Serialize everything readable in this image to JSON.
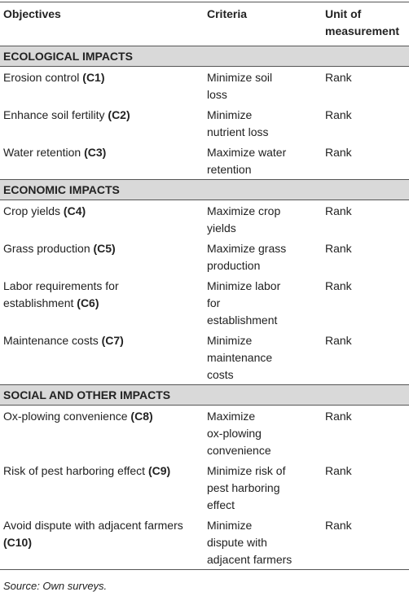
{
  "table": {
    "header": [
      "Objectives",
      "Criteria",
      "Unit of measurement"
    ],
    "sections": [
      {
        "title": "ECOLOGICAL IMPACTS",
        "rows": [
          {
            "objective": "Erosion control",
            "code": "(C1)",
            "criteria": [
              "Minimize soil",
              "loss"
            ],
            "unit": "Rank"
          },
          {
            "objective": "Enhance soil fertility",
            "code": "(C2)",
            "criteria": [
              "Minimize",
              "nutrient loss"
            ],
            "unit": "Rank"
          },
          {
            "objective": "Water retention",
            "code": "(C3)",
            "criteria": [
              "Maximize water",
              "retention"
            ],
            "unit": "Rank"
          }
        ]
      },
      {
        "title": "ECONOMIC IMPACTS",
        "rows": [
          {
            "objective": "Crop yields",
            "code": "(C4)",
            "criteria": [
              "Maximize crop",
              "yields"
            ],
            "unit": "Rank"
          },
          {
            "objective": "Grass production",
            "code": "(C5)",
            "criteria": [
              "Maximize grass",
              "production"
            ],
            "unit": "Rank"
          },
          {
            "objective": "Labor requirements for establishment",
            "code": "(C6)",
            "criteria": [
              "Minimize labor",
              "for",
              "establishment"
            ],
            "unit": "Rank"
          },
          {
            "objective": "Maintenance costs",
            "code": "(C7)",
            "criteria": [
              "Minimize",
              "maintenance",
              "costs"
            ],
            "unit": "Rank"
          }
        ]
      },
      {
        "title": "SOCIAL AND OTHER IMPACTS",
        "rows": [
          {
            "objective": "Ox-plowing convenience",
            "code": "(C8)",
            "criteria": [
              "Maximize",
              "ox-plowing",
              "convenience"
            ],
            "unit": "Rank"
          },
          {
            "objective": "Risk of pest harboring effect",
            "code": "(C9)",
            "criteria": [
              "Minimize risk of",
              "pest harboring",
              "effect"
            ],
            "unit": "Rank"
          },
          {
            "objective": "Avoid dispute with adjacent farmers",
            "code": "(C10)",
            "criteria": [
              "Minimize",
              "dispute with",
              "adjacent farmers"
            ],
            "unit": "Rank"
          }
        ]
      }
    ],
    "source": "Source: Own surveys."
  }
}
